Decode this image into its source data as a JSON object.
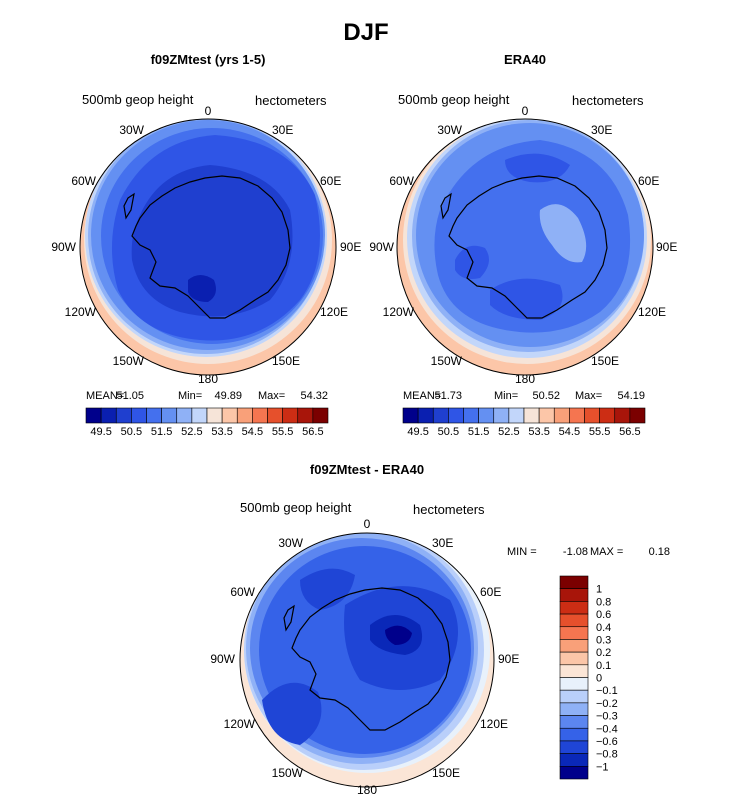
{
  "chart_data": {
    "type": "heatmap",
    "title": "DJF",
    "panels": [
      {
        "id": "model",
        "title": "f09ZMtest (yrs 1-5)",
        "variable": "500mb geop height",
        "units": "hectometers",
        "stats": {
          "mean_label": "MEAN=",
          "mean": "51.05",
          "min_label": "Min=",
          "min": "49.89",
          "max_label": "Max=",
          "max": "54.32"
        },
        "contour_levels": [
          "49.5",
          "50.5",
          "51.5",
          "52.5",
          "53.5",
          "54.5",
          "55.5",
          "56.5"
        ],
        "band_levels": [
          49.5,
          50.5,
          51.0,
          51.5,
          52.0,
          52.5,
          53.0,
          53.5
        ],
        "colorbar_colors": [
          "#00008b",
          "#0a1fb0",
          "#1f3fcf",
          "#2f55e6",
          "#4470ee",
          "#6490f2",
          "#8fb1f6",
          "#c2d6fa",
          "#f6e4d8",
          "#fcc6a8",
          "#f9a079",
          "#f57550",
          "#e6502c",
          "#cc2d14",
          "#a8150a",
          "#7b0000"
        ]
      },
      {
        "id": "obs",
        "title": "ERA40",
        "variable": "500mb geop height",
        "units": "hectometers",
        "stats": {
          "mean_label": "MEAN=",
          "mean": "51.73",
          "min_label": "Min=",
          "min": "50.52",
          "max_label": "Max=",
          "max": "54.19"
        },
        "contour_levels": [
          "49.5",
          "50.5",
          "51.5",
          "52.5",
          "53.5",
          "54.5",
          "55.5",
          "56.5"
        ],
        "band_levels": [
          50.5,
          51.0,
          51.5,
          52.0,
          52.5,
          53.0,
          53.5
        ],
        "colorbar_colors": [
          "#00008b",
          "#0a1fb0",
          "#1f3fcf",
          "#2f55e6",
          "#4470ee",
          "#6490f2",
          "#8fb1f6",
          "#c2d6fa",
          "#f6e4d8",
          "#fcc6a8",
          "#f9a079",
          "#f57550",
          "#e6502c",
          "#cc2d14",
          "#a8150a",
          "#7b0000"
        ]
      },
      {
        "id": "diff",
        "title": "f09ZMtest - ERA40",
        "variable": "500mb geop height",
        "units": "hectometers",
        "stats": {
          "min_label": "MIN =",
          "min": "-1.08",
          "max_label": "MAX =",
          "max": "0.18"
        },
        "contour_levels": [
          "1",
          "0.8",
          "0.6",
          "0.4",
          "0.3",
          "0.2",
          "0.1",
          "0",
          "−0.1",
          "−0.2",
          "−0.3",
          "−0.4",
          "−0.6",
          "−0.8",
          "−1"
        ],
        "colorbar_colors": [
          "#7b0000",
          "#a8150a",
          "#cc2d14",
          "#e6502c",
          "#f57550",
          "#f9a079",
          "#fcc6a8",
          "#fbe5d6",
          "#e8f1fb",
          "#b9cffa",
          "#8fb1f6",
          "#5c86f0",
          "#3562e8",
          "#1f45d6",
          "#0a28b8",
          "#00008b"
        ]
      }
    ],
    "longitude_labels": [
      "0",
      "30E",
      "60E",
      "90E",
      "120E",
      "150E",
      "180",
      "150W",
      "120W",
      "90W",
      "60W",
      "30W"
    ]
  }
}
